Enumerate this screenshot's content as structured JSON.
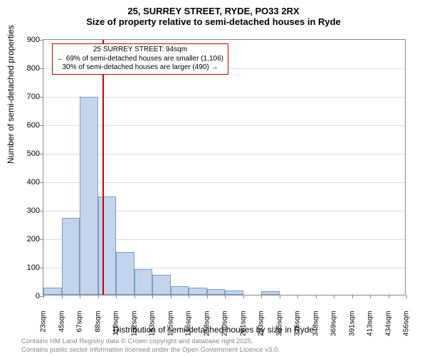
{
  "title": {
    "line1": "25, SURREY STREET, RYDE, PO33 2RX",
    "line2": "Size of property relative to semi-detached houses in Ryde"
  },
  "chart": {
    "type": "histogram",
    "background_color": "#ffffff",
    "grid_color": "#dddddd",
    "border_color": "#888888",
    "bar_fill": "#c3d5ed",
    "bar_stroke": "#7a9bc9",
    "marker_color": "#cc0000",
    "y_axis": {
      "label": "Number of semi-detached properties",
      "min": 0,
      "max": 900,
      "ticks": [
        0,
        100,
        200,
        300,
        400,
        500,
        600,
        700,
        800,
        900
      ]
    },
    "x_axis": {
      "label": "Distribution of semi-detached houses by size in Ryde",
      "ticks": [
        "23sqm",
        "45sqm",
        "67sqm",
        "88sqm",
        "110sqm",
        "132sqm",
        "153sqm",
        "175sqm",
        "196sqm",
        "218sqm",
        "240sqm",
        "261sqm",
        "283sqm",
        "305sqm",
        "326sqm",
        "348sqm",
        "369sqm",
        "391sqm",
        "413sqm",
        "434sqm",
        "456sqm"
      ]
    },
    "bars": [
      25,
      270,
      695,
      345,
      150,
      90,
      70,
      30,
      25,
      20,
      15,
      0,
      12,
      0,
      0,
      0,
      0,
      0,
      0,
      0
    ],
    "marker": {
      "bin_index": 3,
      "fraction_in_bin": 0.27,
      "callout": {
        "line1": "25 SURREY STREET: 94sqm",
        "line2": "← 69% of semi-detached houses are smaller (1,106)",
        "line3": "30% of semi-detached houses are larger (490) →"
      }
    }
  },
  "footer": {
    "line1": "Contains HM Land Registry data © Crown copyright and database right 2025.",
    "line2": "Contains public sector information licensed under the Open Government Licence v3.0."
  }
}
